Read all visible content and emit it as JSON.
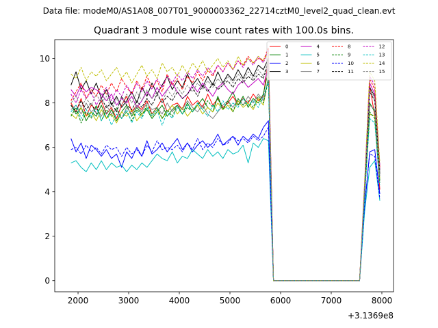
{
  "chart_data": {
    "type": "line",
    "suptitle": "Data file: modeM0/AS1A08_007T01_9000003362_22714cztM0_level2_quad_clean.evt",
    "title": "Quadrant 3 module wise count rates with 100.0s bins.",
    "xlabel": "",
    "ylabel": "",
    "offset_label": "+3.1369e8",
    "xlim": [
      1540,
      8230
    ],
    "ylim": [
      -0.5,
      10.85
    ],
    "xticks": [
      2000,
      3000,
      4000,
      5000,
      6000,
      7000,
      8000
    ],
    "yticks": [
      0,
      2,
      4,
      6,
      8,
      10
    ],
    "x": [
      1860,
      1960,
      2060,
      2160,
      2260,
      2360,
      2460,
      2560,
      2660,
      2760,
      2860,
      2960,
      3060,
      3160,
      3260,
      3360,
      3460,
      3560,
      3660,
      3760,
      3860,
      3960,
      4060,
      4160,
      4260,
      4360,
      4460,
      4560,
      4660,
      4760,
      4860,
      4960,
      5060,
      5160,
      5260,
      5360,
      5460,
      5560,
      5660,
      5760,
      5860,
      5960,
      6060,
      6160,
      6260,
      6360,
      6460,
      6560,
      6660,
      6760,
      6860,
      6960,
      7060,
      7160,
      7260,
      7360,
      7460,
      7560,
      7660,
      7760,
      7860,
      7960
    ],
    "legend_loc": "upper right",
    "series": [
      {
        "name": "0",
        "color": "#ff0000",
        "dash": "solid",
        "values": [
          8.0,
          7.6,
          8.2,
          7.4,
          7.9,
          7.7,
          8.1,
          7.5,
          7.8,
          7.3,
          7.9,
          8.3,
          7.6,
          7.9,
          7.7,
          8.1,
          7.5,
          7.8,
          8.2,
          7.6,
          7.9,
          8.0,
          7.7,
          8.3,
          7.9,
          8.1,
          7.8,
          8.4,
          7.9,
          8.2,
          7.8,
          8.0,
          8.3,
          7.9,
          8.2,
          8.0,
          8.4,
          8.1,
          8.3,
          10.0,
          0.0,
          0.0,
          0.0,
          0.0,
          0.0,
          0.0,
          0.0,
          0.0,
          0.0,
          0.0,
          0.0,
          0.0,
          0.0,
          0.0,
          0.0,
          0.0,
          0.0,
          0.0,
          4.0,
          8.8,
          7.4,
          4.1
        ]
      },
      {
        "name": "1",
        "color": "#008000",
        "dash": "solid",
        "values": [
          7.9,
          7.5,
          7.8,
          7.2,
          7.6,
          7.4,
          7.9,
          7.3,
          7.7,
          7.2,
          7.6,
          7.9,
          7.4,
          7.8,
          7.5,
          7.7,
          7.3,
          7.6,
          7.9,
          7.4,
          7.7,
          7.9,
          7.5,
          8.0,
          7.6,
          7.9,
          8.2,
          7.8,
          7.6,
          8.3,
          7.7,
          8.1,
          8.5,
          7.9,
          8.3,
          7.8,
          8.2,
          8.0,
          8.4,
          9.5,
          0.0,
          0.0,
          0.0,
          0.0,
          0.0,
          0.0,
          0.0,
          0.0,
          0.0,
          0.0,
          0.0,
          0.0,
          0.0,
          0.0,
          0.0,
          0.0,
          0.0,
          0.0,
          4.0,
          8.0,
          7.6,
          4.5
        ]
      },
      {
        "name": "2",
        "color": "#0000ff",
        "dash": "solid",
        "values": [
          6.4,
          5.8,
          6.2,
          5.5,
          6.1,
          5.9,
          5.6,
          5.9,
          5.5,
          5.7,
          5.1,
          5.8,
          5.5,
          6.0,
          5.6,
          6.3,
          5.7,
          5.9,
          6.2,
          5.8,
          6.1,
          6.4,
          5.9,
          6.2,
          5.8,
          6.1,
          6.3,
          6.0,
          6.2,
          6.6,
          6.1,
          6.3,
          6.5,
          6.1,
          6.5,
          6.3,
          6.6,
          6.4,
          6.9,
          7.2,
          0.0,
          0.0,
          0.0,
          0.0,
          0.0,
          0.0,
          0.0,
          0.0,
          0.0,
          0.0,
          0.0,
          0.0,
          0.0,
          0.0,
          0.0,
          0.0,
          0.0,
          0.0,
          3.3,
          5.8,
          5.9,
          3.9
        ]
      },
      {
        "name": "3",
        "color": "#000000",
        "dash": "solid",
        "values": [
          8.8,
          9.4,
          8.6,
          9.0,
          8.4,
          8.9,
          8.2,
          8.6,
          7.9,
          8.3,
          7.8,
          8.1,
          8.5,
          8.0,
          8.7,
          8.3,
          8.9,
          8.4,
          8.8,
          9.2,
          8.6,
          9.0,
          8.7,
          9.3,
          8.8,
          9.1,
          8.7,
          9.2,
          8.8,
          9.4,
          8.9,
          9.3,
          9.0,
          9.5,
          9.1,
          9.6,
          9.2,
          9.7,
          9.5,
          10.0,
          0.0,
          0.0,
          0.0,
          0.0,
          0.0,
          0.0,
          0.0,
          0.0,
          0.0,
          0.0,
          0.0,
          0.0,
          0.0,
          0.0,
          0.0,
          0.0,
          0.0,
          0.0,
          4.0,
          8.7,
          8.3,
          4.8
        ]
      },
      {
        "name": "4",
        "color": "#c000c0",
        "dash": "solid",
        "values": [
          8.6,
          8.3,
          8.8,
          8.5,
          8.7,
          8.6,
          8.4,
          8.1,
          8.4,
          7.9,
          8.2,
          8.0,
          8.3,
          7.8,
          8.1,
          8.5,
          8.2,
          8.7,
          8.3,
          8.6,
          8.9,
          8.5,
          8.2,
          8.4,
          8.8,
          8.5,
          8.9,
          8.6,
          8.3,
          8.7,
          8.9,
          8.6,
          8.4,
          8.8,
          9.0,
          8.7,
          8.9,
          9.1,
          8.8,
          9.6,
          0.0,
          0.0,
          0.0,
          0.0,
          0.0,
          0.0,
          0.0,
          0.0,
          0.0,
          0.0,
          0.0,
          0.0,
          0.0,
          0.0,
          0.0,
          0.0,
          0.0,
          0.0,
          4.2,
          8.9,
          8.4,
          5.0
        ]
      },
      {
        "name": "5",
        "color": "#00bfbf",
        "dash": "solid",
        "values": [
          5.3,
          5.4,
          5.1,
          4.9,
          5.3,
          5.0,
          5.4,
          5.0,
          5.3,
          5.1,
          5.2,
          4.9,
          5.2,
          5.0,
          5.3,
          5.1,
          5.4,
          5.7,
          5.5,
          5.4,
          5.8,
          5.3,
          5.6,
          5.5,
          5.9,
          5.7,
          5.5,
          5.9,
          5.6,
          5.8,
          5.5,
          5.9,
          5.7,
          5.8,
          6.1,
          5.3,
          6.2,
          6.0,
          6.4,
          6.3,
          0.0,
          0.0,
          0.0,
          0.0,
          0.0,
          0.0,
          0.0,
          0.0,
          0.0,
          0.0,
          0.0,
          0.0,
          0.0,
          0.0,
          0.0,
          0.0,
          0.0,
          0.0,
          3.1,
          5.1,
          5.4,
          3.6
        ]
      },
      {
        "name": "6",
        "color": "#bfbf00",
        "dash": "solid",
        "values": [
          7.5,
          7.3,
          7.8,
          7.4,
          7.6,
          7.2,
          7.7,
          7.3,
          7.5,
          7.1,
          7.6,
          7.4,
          7.7,
          7.2,
          7.5,
          7.8,
          7.4,
          7.7,
          7.3,
          7.6,
          7.9,
          7.5,
          7.8,
          7.4,
          7.7,
          7.9,
          7.5,
          7.8,
          7.6,
          8.0,
          7.7,
          7.9,
          7.6,
          8.1,
          7.8,
          8.0,
          7.7,
          8.2,
          7.9,
          9.2,
          0.0,
          0.0,
          0.0,
          0.0,
          0.0,
          0.0,
          0.0,
          0.0,
          0.0,
          0.0,
          0.0,
          0.0,
          0.0,
          0.0,
          0.0,
          0.0,
          0.0,
          0.0,
          3.9,
          7.5,
          7.4,
          4.6
        ]
      },
      {
        "name": "7",
        "color": "#808080",
        "dash": "solid",
        "values": [
          7.7,
          7.9,
          7.5,
          8.0,
          7.6,
          7.8,
          7.4,
          7.9,
          7.5,
          7.7,
          7.3,
          7.8,
          7.5,
          7.9,
          7.6,
          8.0,
          7.7,
          7.8,
          7.5,
          8.0,
          7.6,
          7.9,
          7.7,
          8.1,
          7.8,
          7.6,
          7.9,
          7.5,
          7.3,
          7.6,
          7.9,
          8.1,
          7.8,
          8.2,
          7.9,
          8.3,
          8.0,
          8.4,
          8.1,
          9.1,
          0.0,
          0.0,
          0.0,
          0.0,
          0.0,
          0.0,
          0.0,
          0.0,
          0.0,
          0.0,
          0.0,
          0.0,
          0.0,
          0.0,
          0.0,
          0.0,
          0.0,
          0.0,
          4.1,
          7.9,
          7.7,
          4.7
        ]
      },
      {
        "name": "8",
        "color": "#ff0000",
        "dash": "dashed",
        "values": [
          8.1,
          8.5,
          8.9,
          8.2,
          8.6,
          8.3,
          8.8,
          8.4,
          8.9,
          8.5,
          9.1,
          8.7,
          8.4,
          9.0,
          8.6,
          9.2,
          8.7,
          9.0,
          8.5,
          9.3,
          8.8,
          9.1,
          8.6,
          9.2,
          8.9,
          9.4,
          9.0,
          9.5,
          9.2,
          9.7,
          9.4,
          9.8,
          9.5,
          9.9,
          9.7,
          10.1,
          9.8,
          10.0,
          9.9,
          10.5,
          0.0,
          0.0,
          0.0,
          0.0,
          0.0,
          0.0,
          0.0,
          0.0,
          0.0,
          0.0,
          0.0,
          0.0,
          0.0,
          0.0,
          0.0,
          0.0,
          0.0,
          0.0,
          4.3,
          9.1,
          8.6,
          5.1
        ]
      },
      {
        "name": "9",
        "color": "#008000",
        "dash": "dashed",
        "values": [
          7.4,
          7.8,
          7.1,
          7.6,
          7.3,
          7.9,
          7.2,
          7.7,
          7.4,
          7.8,
          7.3,
          7.6,
          7.2,
          7.7,
          7.4,
          7.9,
          7.5,
          7.8,
          7.3,
          7.7,
          7.4,
          7.9,
          7.5,
          7.8,
          7.6,
          8.0,
          7.7,
          8.1,
          7.8,
          8.2,
          7.7,
          8.1,
          7.6,
          8.2,
          7.9,
          8.1,
          7.8,
          8.3,
          8.0,
          9.0,
          0.0,
          0.0,
          0.0,
          0.0,
          0.0,
          0.0,
          0.0,
          0.0,
          0.0,
          0.0,
          0.0,
          0.0,
          0.0,
          0.0,
          0.0,
          0.0,
          0.0,
          0.0,
          3.8,
          7.6,
          7.3,
          4.4
        ]
      },
      {
        "name": "10",
        "color": "#0000ff",
        "dash": "dashed",
        "values": [
          5.9,
          6.0,
          5.7,
          6.1,
          5.8,
          6.0,
          5.7,
          6.1,
          5.9,
          6.0,
          5.6,
          6.0,
          5.7,
          5.9,
          5.6,
          6.1,
          5.8,
          6.3,
          5.9,
          6.0,
          5.9,
          6.1,
          5.8,
          6.2,
          5.9,
          6.4,
          5.9,
          6.2,
          6.0,
          6.4,
          6.1,
          6.2,
          6.5,
          6.3,
          6.4,
          6.2,
          6.5,
          6.3,
          6.5,
          6.9,
          0.0,
          0.0,
          0.0,
          0.0,
          0.0,
          0.0,
          0.0,
          0.0,
          0.0,
          0.0,
          0.0,
          0.0,
          0.0,
          0.0,
          0.0,
          0.0,
          0.0,
          0.0,
          3.4,
          5.7,
          5.6,
          3.7
        ]
      },
      {
        "name": "11",
        "color": "#000000",
        "dash": "dashed",
        "values": [
          7.9,
          7.6,
          8.1,
          7.7,
          8.0,
          7.5,
          8.2,
          7.8,
          8.0,
          7.6,
          8.3,
          7.9,
          7.7,
          8.1,
          7.8,
          8.2,
          7.9,
          8.4,
          8.0,
          8.3,
          8.1,
          8.5,
          8.2,
          8.4,
          8.7,
          8.3,
          8.8,
          8.5,
          8.9,
          8.6,
          8.8,
          9.0,
          8.7,
          9.1,
          8.9,
          9.2,
          9.0,
          9.3,
          9.1,
          9.8,
          0.0,
          0.0,
          0.0,
          0.0,
          0.0,
          0.0,
          0.0,
          0.0,
          0.0,
          0.0,
          0.0,
          0.0,
          0.0,
          0.0,
          0.0,
          0.0,
          0.0,
          0.0,
          4.1,
          8.5,
          8.1,
          4.9
        ]
      },
      {
        "name": "12",
        "color": "#c000c0",
        "dash": "dashed",
        "values": [
          8.4,
          8.0,
          8.6,
          8.2,
          8.5,
          7.9,
          8.3,
          8.7,
          8.1,
          8.6,
          8.3,
          8.8,
          8.4,
          8.9,
          8.5,
          9.0,
          8.6,
          9.1,
          8.7,
          9.2,
          8.9,
          9.3,
          9.0,
          9.4,
          9.1,
          9.5,
          9.2,
          9.6,
          9.3,
          9.7,
          9.4,
          9.8,
          9.5,
          9.9,
          9.6,
          10.0,
          9.7,
          10.1,
          9.8,
          10.4,
          0.0,
          0.0,
          0.0,
          0.0,
          0.0,
          0.0,
          0.0,
          0.0,
          0.0,
          0.0,
          0.0,
          0.0,
          0.0,
          0.0,
          0.0,
          0.0,
          0.0,
          0.0,
          4.4,
          9.2,
          8.8,
          5.2
        ]
      },
      {
        "name": "13",
        "color": "#00bfbf",
        "dash": "dashed",
        "values": [
          7.6,
          7.9,
          7.3,
          7.7,
          7.4,
          7.8,
          7.2,
          7.6,
          7.0,
          7.5,
          7.3,
          7.7,
          7.1,
          7.6,
          7.3,
          7.8,
          7.4,
          7.7,
          7.0,
          7.6,
          7.3,
          7.8,
          7.5,
          7.9,
          7.6,
          8.0,
          7.7,
          7.4,
          7.9,
          7.6,
          8.1,
          7.7,
          8.0,
          7.8,
          8.2,
          7.9,
          8.1,
          7.8,
          8.3,
          9.0,
          0.0,
          0.0,
          0.0,
          0.0,
          0.0,
          0.0,
          0.0,
          0.0,
          0.0,
          0.0,
          0.0,
          0.0,
          0.0,
          0.0,
          0.0,
          0.0,
          0.0,
          0.0,
          3.7,
          7.3,
          7.1,
          4.3
        ]
      },
      {
        "name": "14",
        "color": "#bfbf00",
        "dash": "dashed",
        "values": [
          9.3,
          9.1,
          9.6,
          9.0,
          9.4,
          9.2,
          9.5,
          9.0,
          9.3,
          9.6,
          9.1,
          9.4,
          8.9,
          9.3,
          9.7,
          9.2,
          9.5,
          9.1,
          9.8,
          9.4,
          9.6,
          9.2,
          9.7,
          9.3,
          9.8,
          9.5,
          9.9,
          9.4,
          9.7,
          10.0,
          9.6,
          9.9,
          9.5,
          10.1,
          9.7,
          10.0,
          9.8,
          10.1,
          9.9,
          10.3,
          0.0,
          0.0,
          0.0,
          0.0,
          0.0,
          0.0,
          0.0,
          0.0,
          0.0,
          0.0,
          0.0,
          0.0,
          0.0,
          0.0,
          0.0,
          0.0,
          0.0,
          0.0,
          4.5,
          9.4,
          9.0,
          5.3
        ]
      },
      {
        "name": "15",
        "color": "#808080",
        "dash": "dashed",
        "values": [
          8.0,
          8.3,
          7.8,
          8.2,
          7.9,
          8.4,
          8.0,
          8.3,
          7.7,
          8.2,
          7.9,
          8.4,
          8.0,
          8.5,
          8.1,
          8.6,
          8.2,
          8.5,
          8.0,
          8.6,
          8.3,
          8.7,
          8.4,
          8.8,
          8.5,
          8.9,
          8.6,
          9.0,
          8.7,
          9.1,
          8.8,
          9.2,
          8.9,
          9.3,
          9.0,
          9.4,
          9.1,
          9.5,
          9.2,
          9.9,
          0.0,
          0.0,
          0.0,
          0.0,
          0.0,
          0.0,
          0.0,
          0.0,
          0.0,
          0.0,
          0.0,
          0.0,
          0.0,
          0.0,
          0.0,
          0.0,
          0.0,
          0.0,
          4.2,
          8.6,
          8.2,
          4.9
        ]
      }
    ]
  }
}
